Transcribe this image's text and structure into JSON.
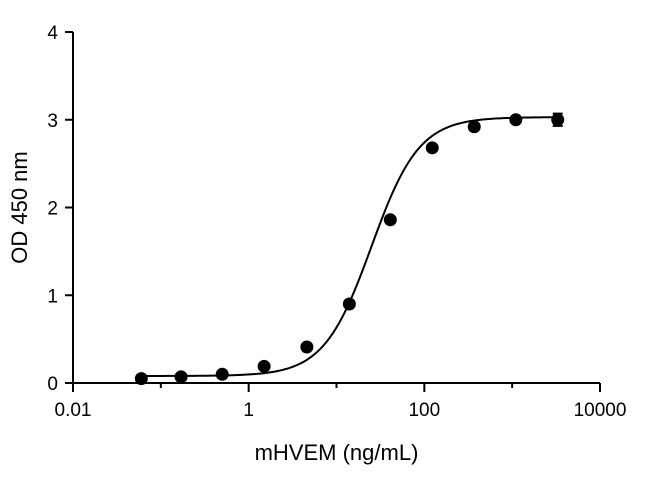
{
  "chart_data": {
    "type": "scatter",
    "title": "",
    "xlabel": "mHVEM (ng/mL)",
    "ylabel": "OD 450 nm",
    "xscale": "log",
    "xlim": [
      0.01,
      10000
    ],
    "ylim": [
      0,
      4
    ],
    "grid": false,
    "legend": "none",
    "x_ticks": [
      0.01,
      1,
      100,
      10000
    ],
    "x_tick_labels": [
      "0.01",
      "1",
      "100",
      "10000"
    ],
    "y_ticks": [
      0,
      1,
      2,
      3,
      4
    ],
    "y_tick_labels": [
      "0",
      "1",
      "2",
      "3",
      "4"
    ],
    "series": [
      {
        "x": [
          0.06,
          0.17,
          0.5,
          1.5,
          4.6,
          14,
          41,
          123,
          370,
          1100,
          3300
        ],
        "y": [
          0.05,
          0.07,
          0.1,
          0.19,
          0.41,
          0.9,
          1.86,
          2.68,
          2.92,
          3.0,
          3.0
        ],
        "error": [
          0,
          0,
          0,
          0,
          0,
          0,
          0,
          0,
          0,
          0,
          0.07
        ]
      }
    ],
    "fit_curve": {
      "type": "4PL",
      "bottom": 0.08,
      "top": 3.03,
      "ec50": 25,
      "hill": 1.6
    },
    "colors": {
      "marks": "#000000",
      "axis": "#000000"
    }
  }
}
